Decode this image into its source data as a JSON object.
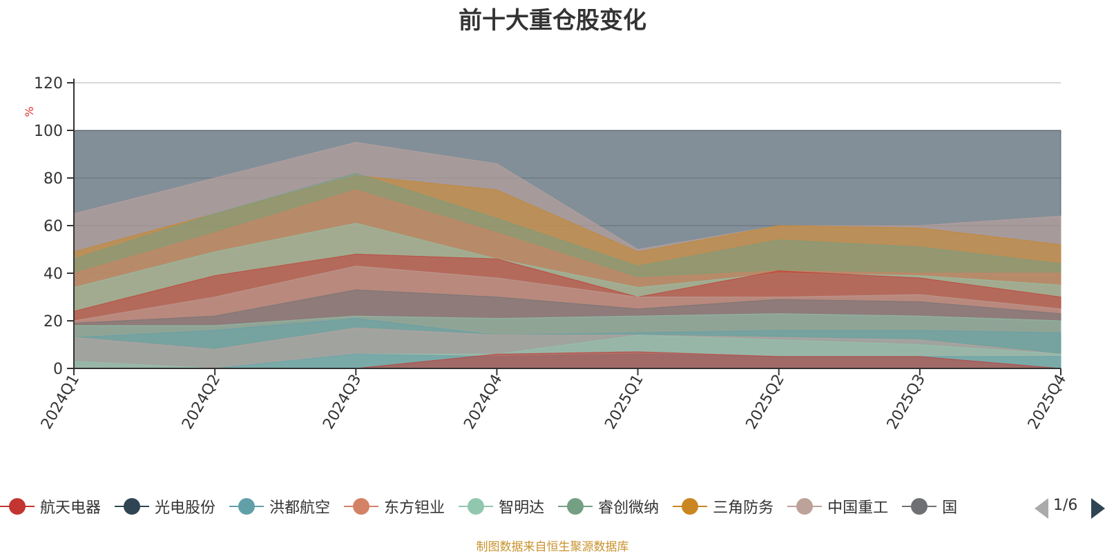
{
  "chart_data": {
    "type": "area",
    "title": "前十大重仓股变化",
    "ylabel": "%",
    "ylim": [
      0,
      120
    ],
    "yticks": [
      0,
      20,
      40,
      60,
      80,
      100,
      120
    ],
    "categories": [
      "2024Q1",
      "2024Q2",
      "2024Q3",
      "2024Q4",
      "2025Q1",
      "2025Q2",
      "2025Q3",
      "2025Q4"
    ],
    "grid": true,
    "layers": [
      {
        "color": "#2f4554",
        "lower": [
          0,
          0,
          0,
          0,
          0,
          0,
          0,
          0
        ],
        "upper": [
          100,
          100,
          100,
          100,
          100,
          100,
          100,
          100
        ]
      },
      {
        "color": "#c4a49e",
        "lower": [
          0,
          0,
          0,
          0,
          0,
          0,
          0,
          0
        ],
        "upper": [
          65,
          80,
          95,
          86,
          50,
          60,
          60,
          64
        ]
      },
      {
        "color": "#ca8622",
        "lower": [
          0,
          0,
          0,
          0,
          0,
          0,
          0,
          0
        ],
        "upper": [
          49,
          65,
          81,
          75,
          49,
          60,
          59,
          52
        ]
      },
      {
        "color": "#749f83",
        "lower": [
          0,
          0,
          0,
          0,
          0,
          0,
          0,
          0
        ],
        "upper": [
          46,
          65,
          82,
          63,
          43,
          54,
          51,
          44
        ]
      },
      {
        "color": "#d48265",
        "lower": [
          0,
          0,
          0,
          0,
          0,
          0,
          0,
          0
        ],
        "upper": [
          40,
          57,
          75,
          57,
          38,
          41,
          40,
          40
        ]
      },
      {
        "color": "#91c7ae",
        "lower": [
          0,
          0,
          0,
          0,
          0,
          0,
          0,
          0
        ],
        "upper": [
          34,
          49,
          61,
          46,
          34,
          40,
          39,
          35
        ]
      },
      {
        "color": "#c23531",
        "lower": [
          0,
          0,
          0,
          0,
          0,
          0,
          0,
          0
        ],
        "upper": [
          24,
          39,
          48,
          46,
          30,
          41,
          38,
          30
        ]
      },
      {
        "color": "#bda29a",
        "lower": [
          0,
          0,
          0,
          0,
          0,
          0,
          0,
          0
        ],
        "upper": [
          20,
          30,
          43,
          38,
          30,
          30,
          31,
          25
        ]
      },
      {
        "color": "#6e7074",
        "lower": [
          0,
          0,
          0,
          0,
          0,
          0,
          0,
          0
        ],
        "upper": [
          19,
          22,
          33,
          30,
          25,
          29,
          28,
          23
        ]
      },
      {
        "color": "#91c7ae",
        "lower": [
          0,
          0,
          0,
          0,
          0,
          0,
          0,
          0
        ],
        "upper": [
          18,
          18,
          22,
          21,
          22,
          23,
          22,
          20
        ]
      },
      {
        "color": "#61a0a8",
        "lower": [
          0,
          0,
          0,
          0,
          0,
          0,
          0,
          0
        ],
        "upper": [
          13,
          16,
          21,
          14,
          15,
          16,
          16,
          15
        ]
      },
      {
        "color": "#c4a49e",
        "lower": [
          0,
          0,
          0,
          0,
          0,
          0,
          0,
          0
        ],
        "upper": [
          13,
          8,
          17,
          14,
          14,
          13,
          12,
          6
        ]
      },
      {
        "color": "#91c7ae",
        "lower": [
          0,
          0,
          0,
          0,
          0,
          0,
          0,
          0
        ],
        "upper": [
          3,
          0,
          6,
          6,
          14,
          12,
          10,
          6
        ]
      },
      {
        "color": "#61a0a8",
        "lower": [
          0,
          0,
          0,
          0,
          0,
          0,
          0,
          0
        ],
        "upper": [
          0,
          0,
          6,
          5,
          6,
          5,
          5,
          5
        ]
      },
      {
        "color": "#c23531",
        "lower": [
          0,
          0,
          0,
          0,
          0,
          0,
          0,
          0
        ],
        "upper": [
          0,
          0,
          0,
          6,
          7,
          5,
          5,
          0
        ]
      }
    ],
    "legend": [
      {
        "name": "航天电器",
        "color": "#c23531"
      },
      {
        "name": "光电股份",
        "color": "#2f4554"
      },
      {
        "name": "洪都航空",
        "color": "#61a0a8"
      },
      {
        "name": "东方钽业",
        "color": "#d48265"
      },
      {
        "name": "智明达",
        "color": "#91c7ae"
      },
      {
        "name": "睿创微纳",
        "color": "#749f83"
      },
      {
        "name": "三角防务",
        "color": "#ca8622"
      },
      {
        "name": "中国重工",
        "color": "#bda29a"
      },
      {
        "name": "国",
        "color": "#6e7074"
      }
    ],
    "legend_page": "1/6"
  },
  "source_note": "制图数据来自恒生聚源数据库"
}
